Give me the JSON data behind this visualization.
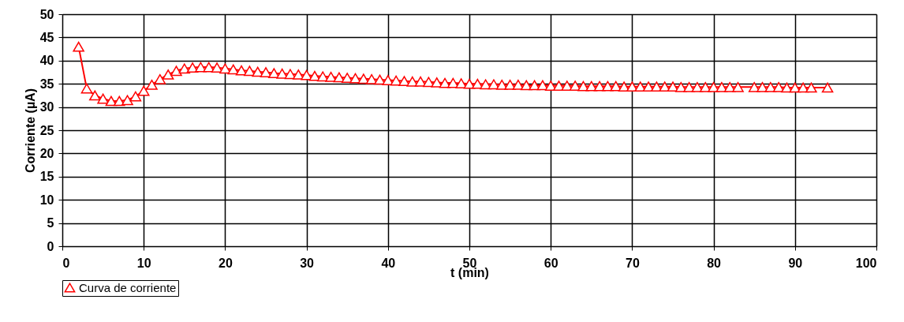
{
  "chart_data": {
    "type": "line",
    "xlabel": "t (min)",
    "ylabel": "Corriente (µA)",
    "x": [
      2,
      3,
      4,
      5,
      6,
      7,
      8,
      9,
      10,
      11,
      12,
      13,
      14,
      15,
      16,
      17,
      18,
      19,
      20,
      21,
      22,
      23,
      24,
      25,
      26,
      27,
      28,
      29,
      30,
      31,
      32,
      33,
      34,
      35,
      36,
      37,
      38,
      39,
      40,
      41,
      42,
      43,
      44,
      45,
      46,
      47,
      48,
      49,
      50,
      51,
      52,
      53,
      54,
      55,
      56,
      57,
      58,
      59,
      60,
      61,
      62,
      63,
      64,
      65,
      66,
      67,
      68,
      69,
      70,
      71,
      72,
      73,
      74,
      75,
      76,
      77,
      78,
      79,
      80,
      81,
      82,
      83,
      85,
      86,
      87,
      88,
      89,
      90,
      91,
      92,
      94
    ],
    "series": [
      {
        "name": "Curva de corriente",
        "color": "#ff0000",
        "values": [
          43,
          34,
          32.5,
          31.8,
          31.3,
          31.3,
          31.5,
          32.3,
          33.5,
          34.8,
          36,
          37,
          37.8,
          38.3,
          38.5,
          38.6,
          38.6,
          38.5,
          38.3,
          38.1,
          37.9,
          37.8,
          37.6,
          37.5,
          37.3,
          37.2,
          37.1,
          37.0,
          36.9,
          36.7,
          36.6,
          36.5,
          36.4,
          36.3,
          36.2,
          36.1,
          36.0,
          35.9,
          35.8,
          35.7,
          35.6,
          35.5,
          35.5,
          35.4,
          35.3,
          35.2,
          35.2,
          35.1,
          35.0,
          35.0,
          34.9,
          34.9,
          34.8,
          34.8,
          34.8,
          34.7,
          34.7,
          34.7,
          34.6,
          34.6,
          34.6,
          34.6,
          34.5,
          34.5,
          34.5,
          34.5,
          34.5,
          34.4,
          34.4,
          34.4,
          34.4,
          34.4,
          34.4,
          34.4,
          34.3,
          34.3,
          34.3,
          34.3,
          34.3,
          34.3,
          34.3,
          34.3,
          34.3,
          34.3,
          34.3,
          34.3,
          34.2,
          34.2,
          34.2,
          34.2,
          34.2
        ]
      }
    ],
    "xlim": [
      0,
      100
    ],
    "xticks": [
      0,
      10,
      20,
      30,
      40,
      50,
      60,
      70,
      80,
      90,
      100
    ],
    "ylim": [
      0,
      50
    ],
    "yticks": [
      0,
      5,
      10,
      15,
      20,
      25,
      30,
      35,
      40,
      45,
      50
    ],
    "grid": true,
    "legend": "bottom",
    "marker": "triangle",
    "line_style": "solid"
  }
}
